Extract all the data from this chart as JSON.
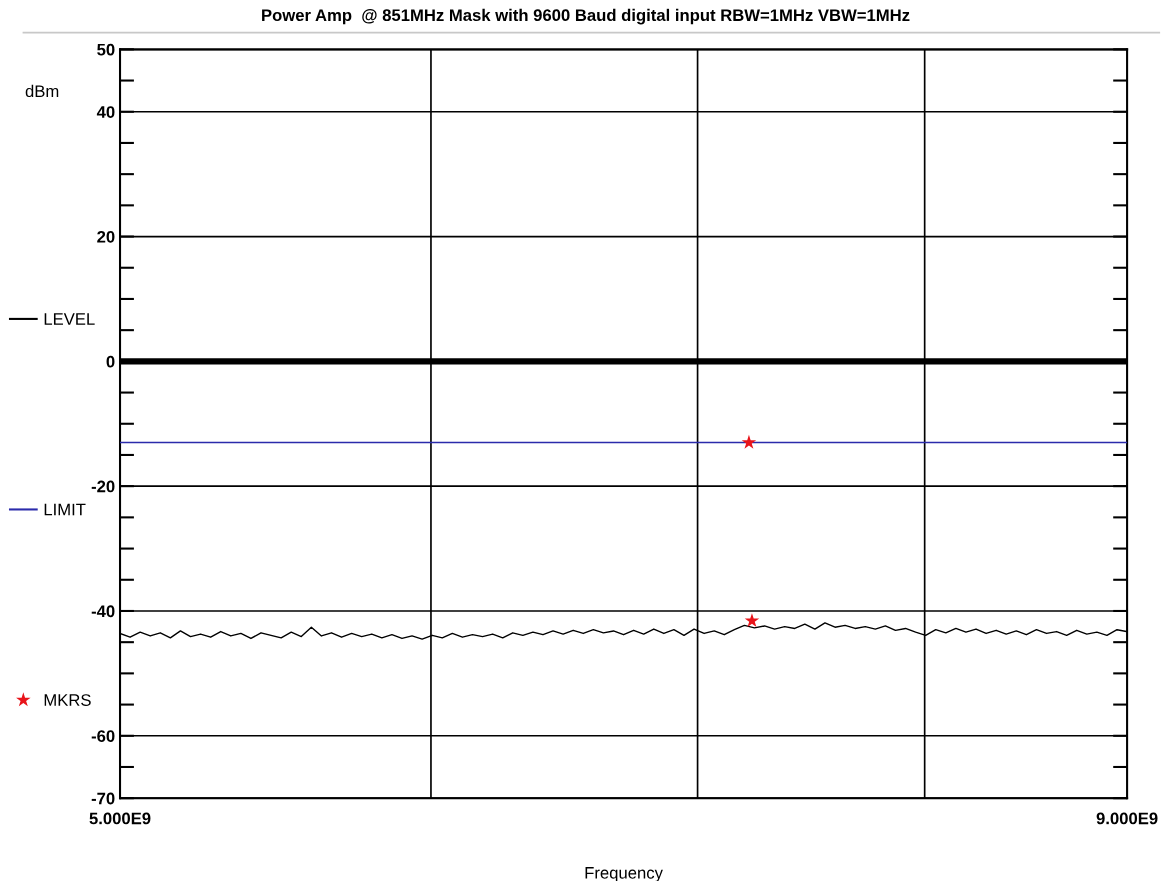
{
  "chart_data": {
    "type": "line",
    "title": "Power Amp  @ 851MHz Mask with 9600 Baud digital input RBW=1MHz VBW=1MHz",
    "xlabel": "Frequency",
    "ylabel": "dBm",
    "xlim": [
      5000000000.0,
      9000000000.0
    ],
    "xticks": [
      {
        "value": 5000000000.0,
        "label": "5.000E9"
      },
      {
        "value": 9000000000.0,
        "label": "9.000E9"
      }
    ],
    "ylim": [
      -70,
      50
    ],
    "yticks": [
      50,
      {
        "value": 45,
        "label": null
      },
      40,
      {
        "value": 35,
        "label": null
      },
      {
        "value": 30,
        "label": null
      },
      {
        "value": 25,
        "label": null
      },
      20,
      {
        "value": 15,
        "label": null
      },
      {
        "value": 10,
        "label": null
      },
      {
        "value": 5,
        "label": null
      },
      0,
      {
        "value": -5,
        "label": null
      },
      {
        "value": -10,
        "label": null
      },
      {
        "value": -15,
        "label": null
      },
      -20,
      {
        "value": -25,
        "label": null
      },
      {
        "value": -30,
        "label": null
      },
      {
        "value": -35,
        "label": null
      },
      -40,
      {
        "value": -45,
        "label": null
      },
      {
        "value": -50,
        "label": null
      },
      {
        "value": -55,
        "label": null
      },
      -60,
      {
        "value": -65,
        "label": null
      },
      -70
    ],
    "grid": "y",
    "legend": "left",
    "ref_lines": [
      {
        "axis": "y",
        "value": 0,
        "color": "#000000"
      },
      {
        "axis": "x",
        "value": 6235000000.0,
        "color": "#000000"
      },
      {
        "axis": "x",
        "value": 7294000000.0,
        "color": "#000000"
      },
      {
        "axis": "x",
        "value": 8196000000.0,
        "color": "#000000"
      }
    ],
    "series": [
      {
        "name": "LEVEL",
        "color": "#000000",
        "x": [
          5000000000.0,
          5040000000.0,
          5080000000.0,
          5120000000.0,
          5160000000.0,
          5200000000.0,
          5240000000.0,
          5280000000.0,
          5320000000.0,
          5360000000.0,
          5400000000.0,
          5440000000.0,
          5480000000.0,
          5520000000.0,
          5560000000.0,
          5600000000.0,
          5640000000.0,
          5680000000.0,
          5720000000.0,
          5760000000.0,
          5800000000.0,
          5840000000.0,
          5880000000.0,
          5920000000.0,
          5960000000.0,
          6000000000.0,
          6040000000.0,
          6080000000.0,
          6120000000.0,
          6160000000.0,
          6200000000.0,
          6240000000.0,
          6280000000.0,
          6320000000.0,
          6360000000.0,
          6400000000.0,
          6440000000.0,
          6480000000.0,
          6520000000.0,
          6560000000.0,
          6600000000.0,
          6640000000.0,
          6680000000.0,
          6720000000.0,
          6760000000.0,
          6800000000.0,
          6840000000.0,
          6880000000.0,
          6920000000.0,
          6960000000.0,
          7000000000.0,
          7040000000.0,
          7080000000.0,
          7120000000.0,
          7160000000.0,
          7200000000.0,
          7240000000.0,
          7280000000.0,
          7320000000.0,
          7360000000.0,
          7400000000.0,
          7440000000.0,
          7480000000.0,
          7520000000.0,
          7560000000.0,
          7600000000.0,
          7640000000.0,
          7680000000.0,
          7720000000.0,
          7760000000.0,
          7800000000.0,
          7840000000.0,
          7880000000.0,
          7920000000.0,
          7960000000.0,
          8000000000.0,
          8040000000.0,
          8080000000.0,
          8120000000.0,
          8160000000.0,
          8200000000.0,
          8240000000.0,
          8280000000.0,
          8320000000.0,
          8360000000.0,
          8400000000.0,
          8440000000.0,
          8480000000.0,
          8520000000.0,
          8560000000.0,
          8600000000.0,
          8640000000.0,
          8680000000.0,
          8720000000.0,
          8760000000.0,
          8800000000.0,
          8840000000.0,
          8880000000.0,
          8920000000.0,
          8960000000.0,
          9000000000.0
        ],
        "values": [
          -43.6,
          -44.2,
          -43.4,
          -44.0,
          -43.5,
          -44.3,
          -43.2,
          -44.1,
          -43.7,
          -44.2,
          -43.3,
          -44.0,
          -43.6,
          -44.4,
          -43.5,
          -43.9,
          -44.3,
          -43.4,
          -44.1,
          -42.6,
          -44.0,
          -43.5,
          -44.2,
          -43.6,
          -44.1,
          -43.7,
          -44.3,
          -43.8,
          -44.4,
          -44.0,
          -44.5,
          -43.9,
          -44.3,
          -43.6,
          -44.2,
          -43.8,
          -44.1,
          -43.7,
          -44.3,
          -43.5,
          -43.9,
          -43.4,
          -43.8,
          -43.2,
          -43.7,
          -43.1,
          -43.6,
          -43.0,
          -43.5,
          -43.2,
          -43.8,
          -43.1,
          -43.7,
          -42.9,
          -43.6,
          -43.0,
          -43.9,
          -42.9,
          -43.6,
          -43.2,
          -43.8,
          -43.0,
          -42.3,
          -42.7,
          -42.4,
          -42.9,
          -42.5,
          -42.8,
          -42.1,
          -42.9,
          -41.9,
          -42.6,
          -42.3,
          -42.8,
          -42.5,
          -42.9,
          -42.4,
          -43.1,
          -42.8,
          -43.4,
          -43.9,
          -43.0,
          -43.5,
          -42.8,
          -43.4,
          -42.9,
          -43.6,
          -43.1,
          -43.7,
          -43.2,
          -43.8,
          -43.0,
          -43.6,
          -43.3,
          -43.9,
          -43.1,
          -43.7,
          -43.4,
          -43.9,
          -43.0,
          -43.3
        ]
      },
      {
        "name": "LIMIT",
        "color": "#2b2bab",
        "x": [
          5000000000.0,
          9000000000.0
        ],
        "values": [
          -13,
          -13
        ]
      },
      {
        "name": "MKRS",
        "type": "scatter",
        "color": "#e8141a",
        "marker": "star",
        "x": [
          7498000000.0,
          7510000000.0
        ],
        "values": [
          -13,
          -41.6
        ]
      }
    ]
  }
}
